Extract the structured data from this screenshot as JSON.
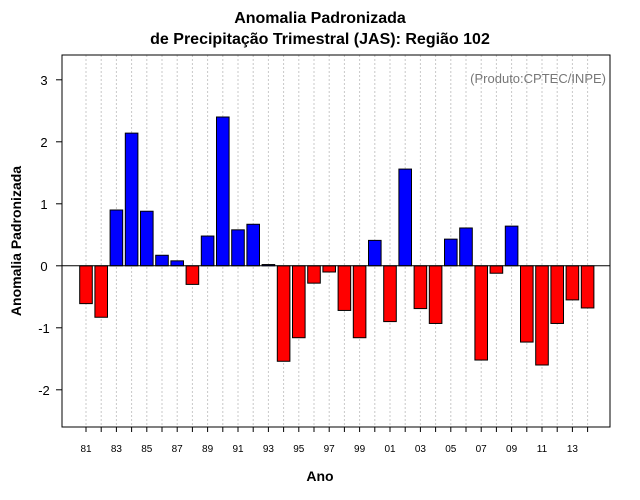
{
  "chart_data": {
    "type": "bar",
    "title": "Anomalia Padronizada",
    "subtitle": "de Precipitação Trimestral (JAS): Região 102",
    "xlabel": "Ano",
    "ylabel": "Anomalia Padronizada",
    "annotation": "(Produto:CPTEC/INPE)",
    "ylim": [
      -2.6,
      3.4
    ],
    "y_ticks": [
      -2,
      -1,
      0,
      1,
      2,
      3
    ],
    "grid": "vertical dotted",
    "x_tick_labels": [
      "81",
      "83",
      "85",
      "87",
      "89",
      "91",
      "93",
      "95",
      "97",
      "99",
      "01",
      "03",
      "05",
      "07",
      "09",
      "11",
      "13"
    ],
    "categories": [
      "1981",
      "1982",
      "1983",
      "1984",
      "1985",
      "1986",
      "1987",
      "1988",
      "1989",
      "1990",
      "1991",
      "1992",
      "1993",
      "1994",
      "1995",
      "1996",
      "1997",
      "1998",
      "1999",
      "2000",
      "2001",
      "2002",
      "2003",
      "2004",
      "2005",
      "2006",
      "2007",
      "2008",
      "2009",
      "2010",
      "2011",
      "2012",
      "2013",
      "2014"
    ],
    "values": [
      -0.61,
      -0.83,
      0.9,
      2.14,
      0.88,
      0.17,
      0.08,
      -0.3,
      0.48,
      2.4,
      0.58,
      0.67,
      0.02,
      -1.54,
      -1.16,
      -0.28,
      -0.1,
      -0.72,
      -1.16,
      0.41,
      -0.9,
      1.56,
      -0.69,
      -0.93,
      0.43,
      0.61,
      -1.52,
      -0.12,
      0.64,
      -1.23,
      -1.6,
      -0.93,
      -0.55,
      -0.68
    ],
    "colors": {
      "positive": "#0000ff",
      "negative": "#ff0000",
      "grid": "#c8c8c8"
    }
  }
}
